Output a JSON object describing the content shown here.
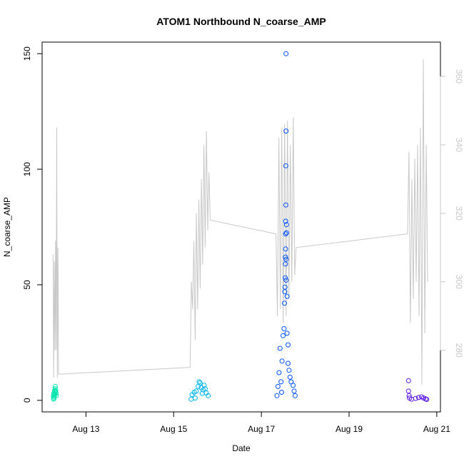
{
  "chart_data": {
    "type": "scatter",
    "title": "ATOM1 Northbound N_coarse_AMP",
    "xlabel": "Date",
    "ylabel": "N_coarse_AMP",
    "x_ticks": [
      "Aug 13",
      "Aug 15",
      "Aug 17",
      "Aug 19",
      "Aug 21"
    ],
    "x_tick_dates": [
      "2023-08-13",
      "2023-08-15",
      "2023-08-17",
      "2023-08-19",
      "2023-08-21"
    ],
    "xlim": [
      "2023-08-12 00:00",
      "2023-08-21 02:00"
    ],
    "ylim": [
      -5,
      155
    ],
    "y_ticks": [
      0,
      50,
      100,
      150
    ],
    "y2lim": [
      262,
      370
    ],
    "y2_ticks": [
      280,
      300,
      320,
      340,
      360
    ],
    "grid": false,
    "colors": {
      "line": "#c8c8c8",
      "right_axis_text": "#c8c8c8",
      "cluster_aug12": "#00e5b0",
      "cluster_aug15": "#00b4f0",
      "cluster_aug17": "#0050ff",
      "cluster_aug20": "#5a14e6"
    },
    "series": [
      {
        "type": "scatter",
        "clusters": [
          {
            "date_range": [
              "2023-08-12 06:00",
              "2023-08-12 08:00"
            ],
            "color": "#00e5b0",
            "points": [
              [
                0.1,
                1.0
              ],
              [
                0.1,
                2.0
              ],
              [
                0.2,
                0.5
              ],
              [
                0.2,
                3.0
              ],
              [
                0.3,
                1.5
              ],
              [
                0.35,
                2.2
              ],
              [
                0.4,
                4.0
              ],
              [
                0.45,
                3.6
              ],
              [
                0.5,
                2.5
              ],
              [
                0.55,
                5.0
              ],
              [
                0.6,
                3.8
              ],
              [
                0.6,
                6.0
              ],
              [
                0.7,
                4.4
              ],
              [
                0.8,
                3.2
              ],
              [
                0.9,
                2.0
              ]
            ]
          },
          {
            "date_range": [
              "2023-08-15 09:00",
              "2023-08-15 20:00"
            ],
            "color": "#00b4f0",
            "points": [
              [
                0.05,
                0.5
              ],
              [
                0.1,
                2.5
              ],
              [
                0.2,
                3.5
              ],
              [
                0.25,
                1.0
              ],
              [
                0.3,
                4.0
              ],
              [
                0.4,
                6.0
              ],
              [
                0.45,
                8.0
              ],
              [
                0.5,
                7.5
              ],
              [
                0.55,
                5.5
              ],
              [
                0.6,
                3.0
              ],
              [
                0.65,
                4.5
              ],
              [
                0.7,
                6.5
              ],
              [
                0.75,
                5.0
              ],
              [
                0.8,
                3.2
              ],
              [
                0.9,
                2.0
              ]
            ]
          },
          {
            "date_range": [
              "2023-08-17 08:00",
              "2023-08-17 19:00"
            ],
            "color": "#0050ff",
            "points": [
              [
                0.05,
                2.0
              ],
              [
                0.1,
                6.0
              ],
              [
                0.15,
                12.0
              ],
              [
                0.2,
                22.5
              ],
              [
                0.25,
                8.0
              ],
              [
                0.28,
                3.5
              ],
              [
                0.3,
                17.0
              ],
              [
                0.35,
                28.0
              ],
              [
                0.4,
                31.0
              ],
              [
                0.42,
                42.0
              ],
              [
                0.44,
                47.0
              ],
              [
                0.45,
                49.0
              ],
              [
                0.46,
                53.0
              ],
              [
                0.47,
                59.0
              ],
              [
                0.47,
                62.0
              ],
              [
                0.48,
                65.5
              ],
              [
                0.48,
                72.0
              ],
              [
                0.48,
                77.5
              ],
              [
                0.49,
                84.5
              ],
              [
                0.49,
                101.5
              ],
              [
                0.5,
                116.5
              ],
              [
                0.5,
                150.0
              ],
              [
                0.5,
                52.0
              ],
              [
                0.5,
                61.0
              ],
              [
                0.52,
                76.0
              ],
              [
                0.52,
                72.5
              ],
              [
                0.55,
                45.0
              ],
              [
                0.55,
                29.0
              ],
              [
                0.6,
                24.0
              ],
              [
                0.6,
                16.0
              ],
              [
                0.65,
                13.0
              ],
              [
                0.7,
                10.0
              ],
              [
                0.75,
                8.0
              ],
              [
                0.85,
                6.5
              ],
              [
                0.9,
                4.0
              ],
              [
                0.95,
                2.0
              ]
            ]
          },
          {
            "date_range": [
              "2023-08-20 08:00",
              "2023-08-20 19:00"
            ],
            "color": "#5a14e6",
            "points": [
              [
                0.05,
                8.5
              ],
              [
                0.05,
                4.0
              ],
              [
                0.08,
                2.0
              ],
              [
                0.1,
                1.0
              ],
              [
                0.2,
                0.5
              ],
              [
                0.4,
                0.8
              ],
              [
                0.55,
                1.2
              ],
              [
                0.7,
                1.5
              ],
              [
                0.8,
                1.0
              ],
              [
                0.9,
                0.6
              ],
              [
                0.95,
                0.4
              ]
            ]
          }
        ]
      },
      {
        "type": "line",
        "axis": "right",
        "segments": [
          {
            "date_range": [
              "2023-08-12 06:00",
              "2023-08-12 09:00"
            ],
            "values": [
              308,
              272,
              306,
              280,
              312,
              280,
              345,
              272,
              310,
              273
            ]
          },
          {
            "date_range": [
              "2023-08-15 09:00",
              "2023-08-15 20:00"
            ],
            "values": [
              275,
              300,
              292,
              312,
              283,
              320,
              292,
              324,
              298,
              330,
              305,
              340,
              310,
              344,
              315,
              332,
              318
            ]
          },
          {
            "date_range": [
              "2023-08-17 08:00",
              "2023-08-17 19:00"
            ],
            "values": [
              314,
              290,
              342,
              292,
              345,
              288,
              346,
              290,
              347,
              295,
              340,
              300,
              348,
              302,
              310
            ]
          },
          {
            "date_range": [
              "2023-08-20 08:00",
              "2023-08-20 19:00"
            ],
            "values": [
              314,
              338,
              288,
              330,
              295,
              336,
              300,
              340,
              290,
              345,
              270,
              365,
              285,
              340,
              300
            ]
          }
        ]
      }
    ]
  }
}
